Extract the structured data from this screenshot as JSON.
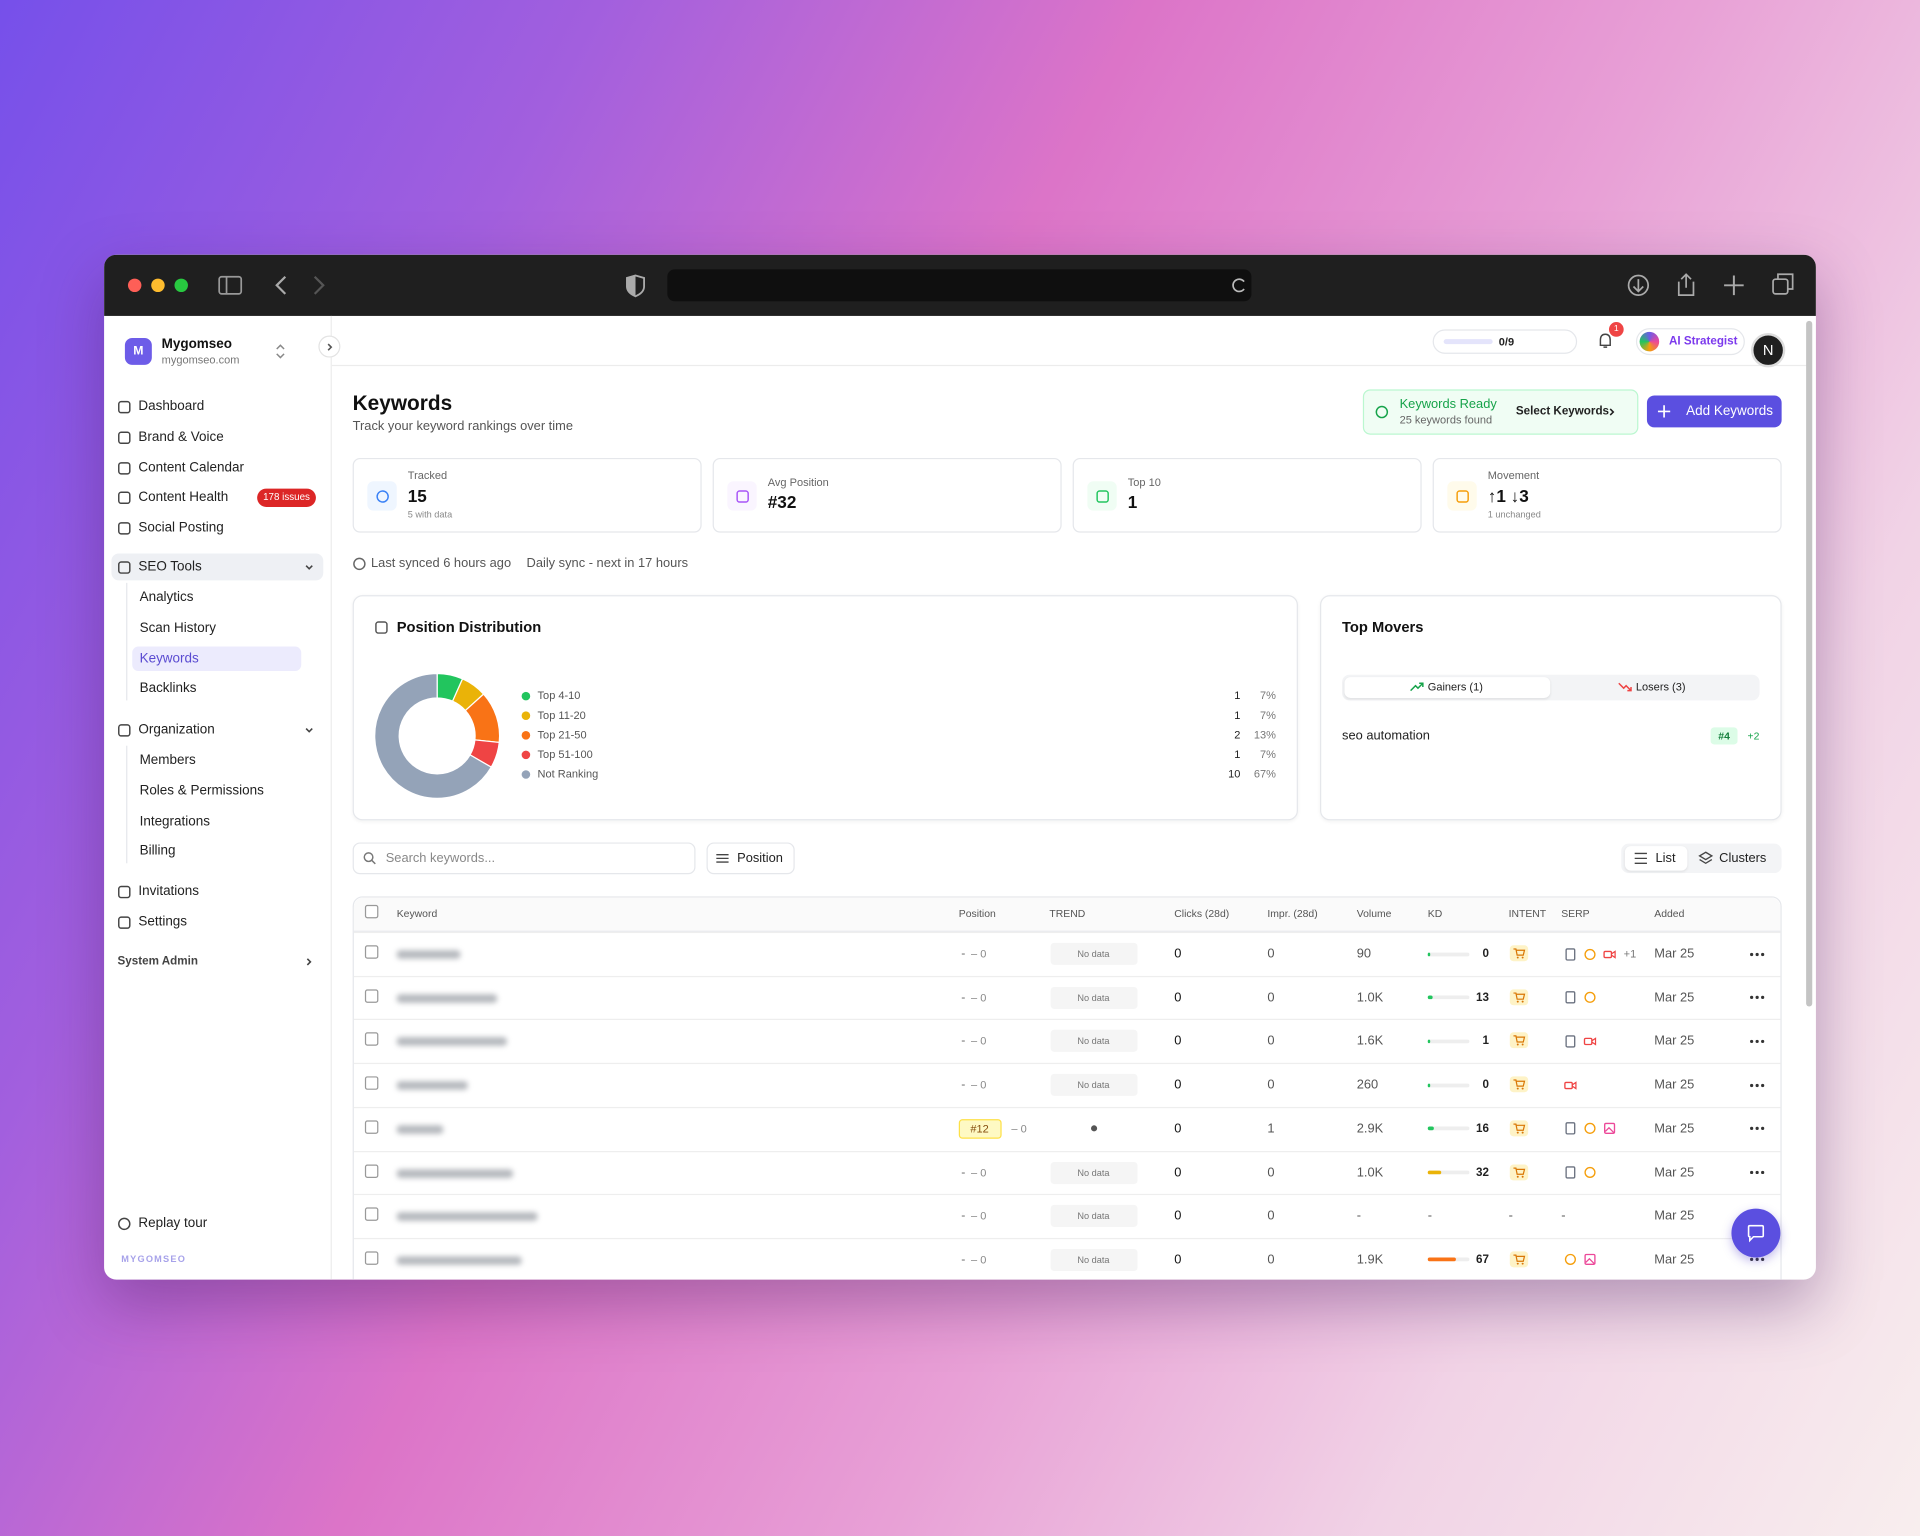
{
  "sidebar": {
    "workspace": {
      "initial": "M",
      "name": "Mygomseo",
      "domain": "mygomseo.com"
    },
    "nav": [
      {
        "label": "Dashboard"
      },
      {
        "label": "Brand & Voice"
      },
      {
        "label": "Content Calendar"
      },
      {
        "label": "Content Health",
        "badge": "178 issues"
      },
      {
        "label": "Social Posting"
      }
    ],
    "groups": [
      {
        "label": "SEO Tools",
        "items": [
          "Analytics",
          "Scan History",
          "Keywords",
          "Backlinks"
        ]
      },
      {
        "label": "Organization",
        "items": [
          "Members",
          "Roles & Permissions",
          "Integrations",
          "Billing"
        ]
      }
    ],
    "footer_nav": [
      "Invitations",
      "Settings"
    ],
    "system_admin": "System Admin",
    "replay_tour": "Replay tour",
    "brand": "MYGOMSEO"
  },
  "topbar": {
    "progress": "0/9",
    "notification_count": 1,
    "ai_button": "AI Strategist",
    "user_initial": "N"
  },
  "header": {
    "title": "Keywords",
    "subtitle": "Track your keyword rankings over time",
    "ready_title": "Keywords Ready",
    "ready_subtitle": "25 keywords found",
    "select_button": "Select Keywords",
    "add_button": "Add Keywords"
  },
  "stats": [
    {
      "label": "Tracked",
      "value": 15,
      "sub": "5 with data"
    },
    {
      "label": "Avg Position",
      "value": "#32"
    },
    {
      "label": "Top 10",
      "value": 1
    },
    {
      "label": "Movement",
      "value": "↑1 ↓3",
      "sub": "1 unchanged"
    }
  ],
  "sync": {
    "last": "Last synced 6 hours ago",
    "next": "Daily sync - next in 17 hours"
  },
  "distribution": {
    "title": "Position Distribution",
    "rows": [
      {
        "label": "Top 4-10",
        "count": 1,
        "percent": "7%",
        "color": "#22c55e"
      },
      {
        "label": "Top 11-20",
        "count": 1,
        "percent": "7%",
        "color": "#eab308"
      },
      {
        "label": "Top 21-50",
        "count": 2,
        "percent": "13%",
        "color": "#f97316"
      },
      {
        "label": "Top 51-100",
        "count": 1,
        "percent": "7%",
        "color": "#ef4444"
      },
      {
        "label": "Not Ranking",
        "count": 10,
        "percent": "67%",
        "color": "#94a3b8"
      }
    ]
  },
  "top_movers": {
    "title": "Top Movers",
    "tabs": [
      "Gainers (1)",
      "Losers (3)"
    ],
    "items": [
      {
        "keyword": "seo automation",
        "position": "#4",
        "change": "+2"
      }
    ]
  },
  "toolbar": {
    "search_placeholder": "Search keywords...",
    "filter": "Position",
    "views": [
      "List",
      "Clusters"
    ]
  },
  "table": {
    "columns": [
      "Keyword",
      "Position",
      "TREND",
      "Clicks (28d)",
      "Impr. (28d)",
      "Volume",
      "KD",
      "INTENT",
      "SERP",
      "Added"
    ],
    "rows": [
      {
        "position": "-",
        "change": "– 0",
        "trend": "No data",
        "clicks": 0,
        "impressions": 0,
        "volume": 90,
        "kd": 0,
        "serp_more": "+1",
        "added": "Mar 25"
      },
      {
        "position": "-",
        "change": "– 0",
        "trend": "No data",
        "clicks": 0,
        "impressions": 0,
        "volume": "1.0K",
        "kd": 13,
        "added": "Mar 25"
      },
      {
        "position": "-",
        "change": "– 0",
        "trend": "No data",
        "clicks": 0,
        "impressions": 0,
        "volume": "1.6K",
        "kd": 1,
        "added": "Mar 25"
      },
      {
        "position": "-",
        "change": "– 0",
        "trend": "No data",
        "clicks": 0,
        "impressions": 0,
        "volume": 260,
        "kd": 0,
        "added": "Mar 25"
      },
      {
        "position": "#12",
        "change": "– 0",
        "clicks": 0,
        "impressions": 1,
        "volume": "2.9K",
        "kd": 16,
        "added": "Mar 25"
      },
      {
        "position": "-",
        "change": "– 0",
        "trend": "No data",
        "clicks": 0,
        "impressions": 0,
        "volume": "1.0K",
        "kd": 32,
        "added": "Mar 25"
      },
      {
        "position": "-",
        "change": "– 0",
        "trend": "No data",
        "clicks": 0,
        "impressions": 0,
        "volume": "-",
        "kd": "-",
        "intent": "-",
        "serp": "-",
        "added": "Mar 25"
      },
      {
        "position": "-",
        "change": "– 0",
        "trend": "No data",
        "clicks": 0,
        "impressions": 0,
        "volume": "1.9K",
        "kd": 67,
        "added": "Mar 25"
      }
    ]
  }
}
